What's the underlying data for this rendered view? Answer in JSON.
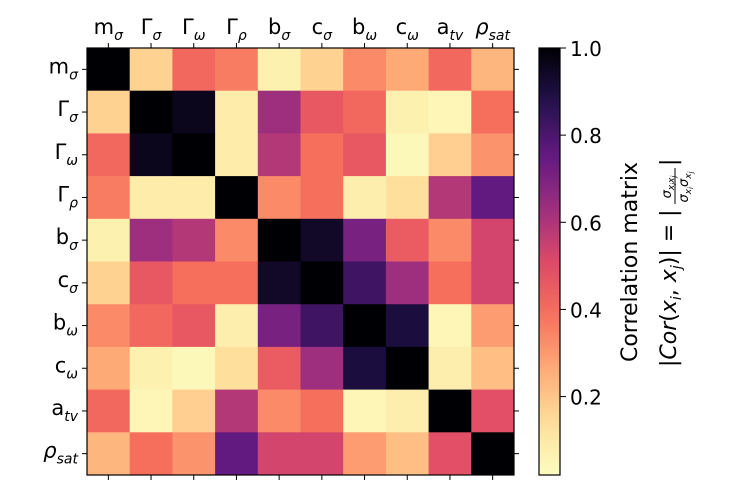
{
  "chart_data": {
    "type": "heatmap",
    "colormap": "magma_r",
    "labels": [
      {
        "base": "m",
        "sub": "σ",
        "greek_base": false
      },
      {
        "base": "Γ",
        "sub": "σ",
        "greek_base": true
      },
      {
        "base": "Γ",
        "sub": "ω",
        "greek_base": true
      },
      {
        "base": "Γ",
        "sub": "ρ",
        "greek_base": true
      },
      {
        "base": "b",
        "sub": "σ",
        "greek_base": false
      },
      {
        "base": "c",
        "sub": "σ",
        "greek_base": false
      },
      {
        "base": "b",
        "sub": "ω",
        "greek_base": false
      },
      {
        "base": "c",
        "sub": "ω",
        "greek_base": false
      },
      {
        "base": "a",
        "sub": "tv",
        "greek_base": false
      },
      {
        "base": "ρ",
        "sub": "sat",
        "greek_base": true
      }
    ],
    "matrix": [
      [
        1.0,
        0.15,
        0.4,
        0.35,
        0.05,
        0.15,
        0.32,
        0.25,
        0.4,
        0.22
      ],
      [
        0.15,
        1.0,
        0.96,
        0.07,
        0.62,
        0.45,
        0.4,
        0.05,
        0.03,
        0.38
      ],
      [
        0.4,
        0.96,
        1.0,
        0.07,
        0.58,
        0.38,
        0.45,
        0.02,
        0.16,
        0.3
      ],
      [
        0.35,
        0.07,
        0.07,
        1.0,
        0.32,
        0.38,
        0.06,
        0.12,
        0.58,
        0.75
      ],
      [
        0.05,
        0.62,
        0.58,
        0.32,
        1.0,
        0.94,
        0.7,
        0.44,
        0.32,
        0.52
      ],
      [
        0.15,
        0.45,
        0.38,
        0.38,
        0.94,
        1.0,
        0.82,
        0.62,
        0.38,
        0.52
      ],
      [
        0.32,
        0.4,
        0.45,
        0.06,
        0.7,
        0.82,
        1.0,
        0.9,
        0.03,
        0.28
      ],
      [
        0.25,
        0.05,
        0.02,
        0.12,
        0.44,
        0.62,
        0.9,
        1.0,
        0.06,
        0.2
      ],
      [
        0.4,
        0.03,
        0.16,
        0.58,
        0.32,
        0.38,
        0.03,
        0.06,
        1.0,
        0.48
      ],
      [
        0.22,
        0.38,
        0.3,
        0.75,
        0.52,
        0.52,
        0.28,
        0.2,
        0.48,
        1.0
      ]
    ],
    "colorbar": {
      "range": [
        0,
        1.0
      ],
      "ticks": [
        0.2,
        0.4,
        0.6,
        0.8,
        1.0
      ],
      "tick_labels": [
        "0.2",
        "0.4",
        "0.6",
        "0.8",
        "1.0"
      ],
      "label_line1": "Correlation matrix",
      "label_line2": "|Cor(x_i, x_j)| = |σ_{x_i x_j} / (σ_{x_i} σ_{x_j})|"
    }
  }
}
